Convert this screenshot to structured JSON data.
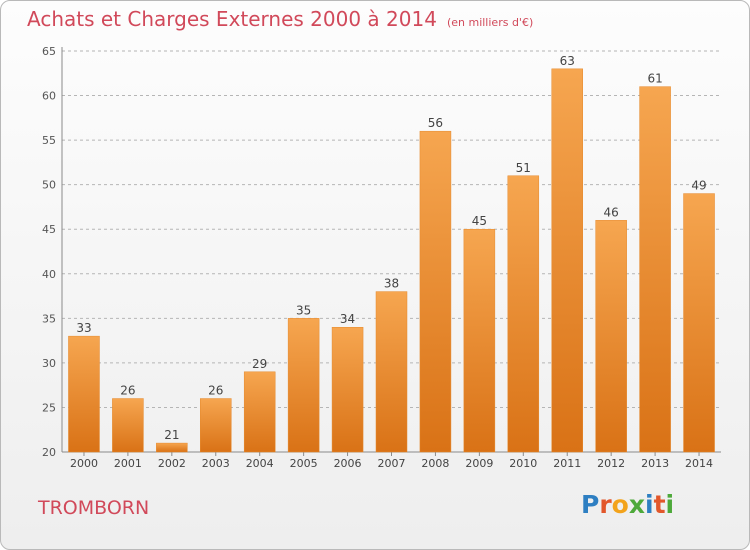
{
  "header": {
    "title": "Achats et Charges Externes 2000 à 2014",
    "subtitle": "(en milliers d'€)"
  },
  "footer": {
    "commune": "TROMBORN",
    "logo_text": "Proxiti",
    "logo_letters": [
      {
        "char": "P",
        "color": "#2e7fc2"
      },
      {
        "char": "r",
        "color": "#e2572b"
      },
      {
        "char": "o",
        "color": "#f3a31b"
      },
      {
        "char": "x",
        "color": "#4da93a"
      },
      {
        "char": "i",
        "color": "#2e7fc2"
      },
      {
        "char": "t",
        "color": "#e2572b"
      },
      {
        "char": "i",
        "color": "#4da93a"
      }
    ]
  },
  "colors": {
    "title": "#d1495a",
    "bar_light": "#f6a650",
    "bar_dark": "#d97216",
    "grid": "#b5b5b5"
  },
  "chart_data": {
    "type": "bar",
    "title": "Achats et Charges Externes 2000 à 2014",
    "subtitle": "(en milliers d'€)",
    "categories": [
      "2000",
      "2001",
      "2002",
      "2003",
      "2004",
      "2005",
      "2006",
      "2007",
      "2008",
      "2009",
      "2010",
      "2011",
      "2012",
      "2013",
      "2014"
    ],
    "values": [
      33,
      26,
      21,
      26,
      29,
      35,
      34,
      38,
      56,
      45,
      51,
      63,
      46,
      61,
      49
    ],
    "ylim": [
      20,
      65
    ],
    "yticks": [
      20,
      25,
      30,
      35,
      40,
      45,
      50,
      55,
      60,
      65
    ],
    "grid": true,
    "data_labels": true,
    "xlabel": "",
    "ylabel": ""
  }
}
